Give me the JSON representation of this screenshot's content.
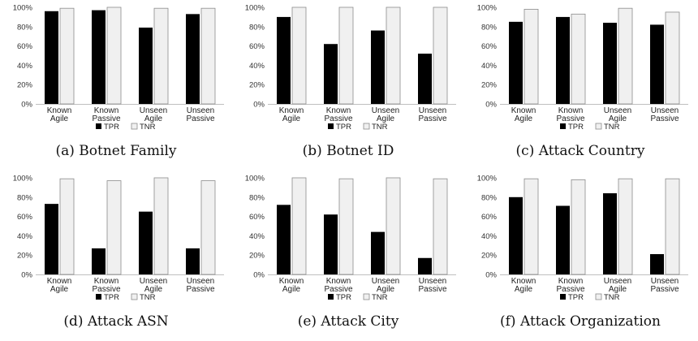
{
  "chart_data": [
    {
      "type": "bar",
      "title": "(a) Botnet Family",
      "categories": [
        "Known Agile",
        "Known Passive",
        "Unseen Agile",
        "Unseen Passive"
      ],
      "series": [
        {
          "name": "TPR",
          "values": [
            96,
            97,
            79,
            93
          ]
        },
        {
          "name": "TNR",
          "values": [
            99,
            100,
            99,
            99
          ]
        }
      ],
      "yticks": [
        "0%",
        "20%",
        "40%",
        "60%",
        "80%",
        "100%"
      ],
      "ylim": [
        0,
        100
      ],
      "legend": "bottom",
      "grid": false
    },
    {
      "type": "bar",
      "title": "(b) Botnet ID",
      "categories": [
        "Known Agile",
        "Known Passive",
        "Unseen Agile",
        "Unseen Passive"
      ],
      "series": [
        {
          "name": "TPR",
          "values": [
            90,
            62,
            76,
            52
          ]
        },
        {
          "name": "TNR",
          "values": [
            100,
            100,
            100,
            100
          ]
        }
      ],
      "yticks": [
        "0%",
        "20%",
        "40%",
        "60%",
        "80%",
        "100%"
      ],
      "ylim": [
        0,
        100
      ],
      "legend": "bottom",
      "grid": false
    },
    {
      "type": "bar",
      "title": "(c) Attack Country",
      "categories": [
        "Known Agile",
        "Known Passive",
        "Unseen Agile",
        "Unseen Passive"
      ],
      "series": [
        {
          "name": "TPR",
          "values": [
            85,
            90,
            84,
            82
          ]
        },
        {
          "name": "TNR",
          "values": [
            98,
            93,
            99,
            95
          ]
        }
      ],
      "yticks": [
        "0%",
        "20%",
        "40%",
        "60%",
        "80%",
        "100%"
      ],
      "ylim": [
        0,
        100
      ],
      "legend": "bottom",
      "grid": false
    },
    {
      "type": "bar",
      "title": "(d) Attack ASN",
      "categories": [
        "Known Agile",
        "Known Passive",
        "Unseen Agile",
        "Unseen Passive"
      ],
      "series": [
        {
          "name": "TPR",
          "values": [
            73,
            27,
            65,
            27
          ]
        },
        {
          "name": "TNR",
          "values": [
            99,
            97,
            100,
            97
          ]
        }
      ],
      "yticks": [
        "0%",
        "20%",
        "40%",
        "60%",
        "80%",
        "100%"
      ],
      "ylim": [
        0,
        100
      ],
      "legend": "bottom",
      "grid": false
    },
    {
      "type": "bar",
      "title": "(e) Attack City",
      "categories": [
        "Known Agile",
        "Known Passive",
        "Unseen Agile",
        "Unseen Passive"
      ],
      "series": [
        {
          "name": "TPR",
          "values": [
            72,
            62,
            44,
            17
          ]
        },
        {
          "name": "TNR",
          "values": [
            100,
            99,
            100,
            99
          ]
        }
      ],
      "yticks": [
        "0%",
        "20%",
        "40%",
        "60%",
        "80%",
        "100%"
      ],
      "ylim": [
        0,
        100
      ],
      "legend": "bottom",
      "grid": false
    },
    {
      "type": "bar",
      "title": "(f) Attack Organization",
      "categories": [
        "Known Agile",
        "Known Passive",
        "Unseen Agile",
        "Unseen Passive"
      ],
      "series": [
        {
          "name": "TPR",
          "values": [
            80,
            71,
            84,
            21
          ]
        },
        {
          "name": "TNR",
          "values": [
            99,
            98,
            99,
            99
          ]
        }
      ],
      "yticks": [
        "0%",
        "20%",
        "40%",
        "60%",
        "80%",
        "100%"
      ],
      "ylim": [
        0,
        100
      ],
      "legend": "bottom",
      "grid": false
    }
  ],
  "colors": {
    "TPR": "#000000",
    "TNR": "#f0f0f0",
    "axis": "#bfbfbf",
    "tnr_border": "#8c8c8c"
  }
}
